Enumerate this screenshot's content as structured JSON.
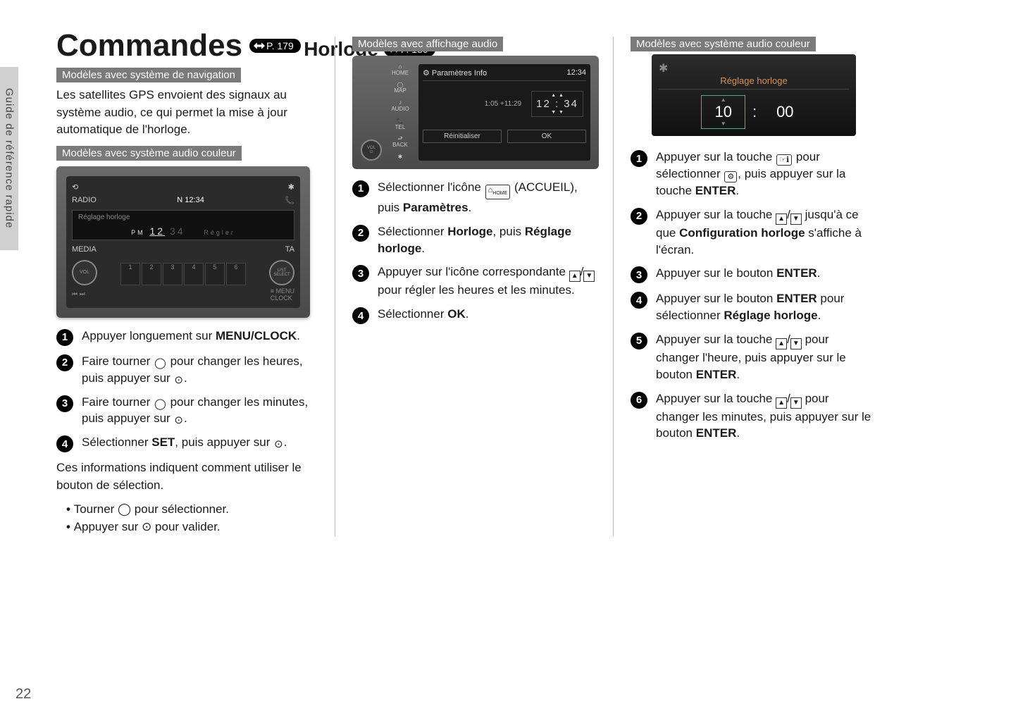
{
  "sideTab": "Guide de référence rapide",
  "pageNumber": "22",
  "mainTitle": "Commandes",
  "mainPageRef": "P. 179",
  "subTitle": "Horloge",
  "subPageRef": "P. 180",
  "col1": {
    "label1": "Modèles avec système de navigation",
    "intro": "Les satellites GPS envoient des signaux au système audio, ce qui permet la mise à jour automatique de l'horloge.",
    "label2": "Modèles avec système audio couleur",
    "device": {
      "radio": "RADIO",
      "media": "MEDIA",
      "clock": "N  12:34",
      "screenTitle": "Réglage horloge",
      "pm": "PM 12    34",
      "vol": "VOL",
      "list": "LIST SELECT",
      "presets": [
        "1",
        "2",
        "3",
        "4",
        "5",
        "6"
      ]
    },
    "steps": [
      {
        "n": "1",
        "html": "Appuyer longuement sur <b>MENU/CLOCK</b>."
      },
      {
        "n": "2",
        "html": "Faire tourner <span class='inline-icon noborder'>◯</span> pour changer les heures, puis appuyer sur <span class='inline-icon noborder'>⊙</span>."
      },
      {
        "n": "3",
        "html": "Faire tourner <span class='inline-icon noborder'>◯</span> pour changer les minutes, puis appuyer sur <span class='inline-icon noborder'>⊙</span>."
      },
      {
        "n": "4",
        "html": "Sélectionner <b>SET</b>, puis appuyer sur <span class='inline-icon noborder'>⊙</span>."
      }
    ],
    "footnote": "Ces informations indiquent comment utiliser le bouton de sélection.",
    "bullets": [
      "Tourner ◯ pour sélectionner.",
      "Appuyer sur ⊙ pour valider."
    ]
  },
  "col2": {
    "label": "Modèles avec affichage audio",
    "device": {
      "sidebar": [
        "⌂\nHOME",
        "◯\nMAP",
        "♪\nAUDIO",
        "📞\nTEL",
        "⮐\nBACK",
        "✱"
      ],
      "volBtn": "VOL AUDIO ⏻",
      "title": "Paramètres Info",
      "clock": "12:34",
      "offset": "1:05  +11:29",
      "bigtime": "12 : 34",
      "btn1": "Réinitialiser",
      "btn2": "OK"
    },
    "steps": [
      {
        "n": "1",
        "html": "Sélectionner l'icône <span class='inline-icon'>⌂<sub style='font-size:7px'>HOME</sub></span> (ACCUEIL), puis <b>Paramètres</b>."
      },
      {
        "n": "2",
        "html": "Sélectionner <b>Horloge</b>, puis <b>Réglage horloge</b>."
      },
      {
        "n": "3",
        "html": "Appuyer sur l'icône correspondante <span class='updn'><span>▲</span></span>/<span class='updn'><span>▼</span></span> pour régler les heures et les minutes."
      },
      {
        "n": "4",
        "html": "Sélectionner <b>OK</b>."
      }
    ]
  },
  "col3": {
    "label": "Modèles avec système audio couleur",
    "device": {
      "gear": "✱",
      "title": "Réglage horloge",
      "hours": "10",
      "minutes": "00"
    },
    "steps": [
      {
        "n": "1",
        "html": "Appuyer sur la touche <span class='inline-icon'>☞ℹ</span> pour sélectionner <span class='inline-icon'>⚙</span>, puis appuyer sur la touche <b>ENTER</b>."
      },
      {
        "n": "2",
        "html": "Appuyer sur la touche <span class='updn'><span>▲</span></span>/<span class='updn'><span>▼</span></span> jusqu'à ce que <b>Configuration horloge</b> s'affiche à l'écran."
      },
      {
        "n": "3",
        "html": "Appuyer sur le bouton <b>ENTER</b>."
      },
      {
        "n": "4",
        "html": "Appuyer sur le bouton <b>ENTER</b> pour sélectionner <b>Réglage horloge</b>."
      },
      {
        "n": "5",
        "html": "Appuyer sur la touche <span class='updn'><span>▲</span></span>/<span class='updn'><span>▼</span></span> pour changer l'heure, puis appuyer sur le bouton <b>ENTER</b>."
      },
      {
        "n": "6",
        "html": "Appuyer sur la touche <span class='updn'><span>▲</span></span>/<span class='updn'><span>▼</span></span> pour changer les minutes, puis appuyer sur le bouton <b>ENTER</b>."
      }
    ]
  }
}
